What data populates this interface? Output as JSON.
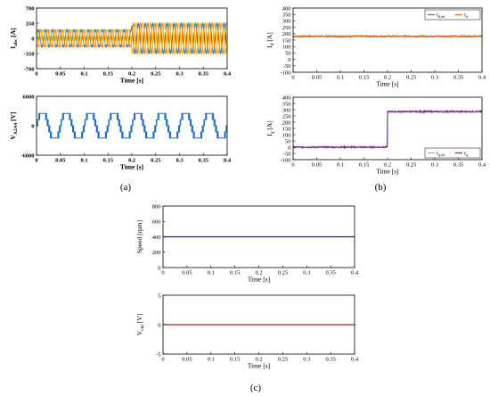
{
  "chart_data": [
    {
      "id": "iabc",
      "type": "line",
      "ylabel": "I",
      "ylabel_sub": "abc",
      "yunit": "[A]",
      "xlabel": "Time [s]",
      "xlim": [
        0,
        0.4
      ],
      "ylim": [
        -700,
        700
      ],
      "xticks": [
        "0",
        "0.05",
        "0.1",
        "0.15",
        "0.2",
        "0.25",
        "0.3",
        "0.35",
        "0.4"
      ],
      "yticks": [
        "700",
        "350",
        "0",
        "-350",
        "-700"
      ],
      "signal": {
        "kind": "three-phase",
        "frequency_hz": 66.7,
        "amplitude_before": 200,
        "amplitude_after": 350,
        "step_time": 0.2
      },
      "series": [
        {
          "name": "",
          "color": "#1f77b4",
          "phase_deg": 0
        },
        {
          "name": "",
          "color": "#ff7f0e",
          "phase_deg": -120
        },
        {
          "name": "",
          "color": "#ffbf00",
          "phase_deg": 120
        }
      ]
    },
    {
      "id": "va2a4",
      "type": "line",
      "ylabel": "V",
      "ylabel_sub": "A2A4",
      "yunit": "[V]",
      "xlabel": "Time [s]",
      "xlim": [
        0,
        0.4
      ],
      "ylim": [
        -6000,
        6000
      ],
      "xticks": [
        "0",
        "0.05",
        "0.1",
        "0.15",
        "0.2",
        "0.25",
        "0.3",
        "0.35",
        "0.4"
      ],
      "yticks": [
        "6000",
        "0",
        "-6000"
      ],
      "signal": {
        "kind": "multilevel-pwm",
        "frequency_hz": 20,
        "levels": [
          -2500,
          -1250,
          0,
          1250,
          2500
        ]
      },
      "series": [
        {
          "name": "",
          "color": "#1f6fc4"
        }
      ]
    },
    {
      "id": "id",
      "type": "line",
      "ylabel": "I",
      "ylabel_sub": "d",
      "yunit": "[A]",
      "xlabel": "Time [s]",
      "xlim": [
        0,
        0.4
      ],
      "ylim": [
        -100,
        400
      ],
      "xticks": [
        "0",
        "0.05",
        "0.1",
        "0.15",
        "0.2",
        "0.25",
        "0.3",
        "0.35",
        "0.4"
      ],
      "yticks": [
        "400",
        "350",
        "300",
        "250",
        "200",
        "150",
        "100",
        "50",
        "0",
        "-50",
        "-100"
      ],
      "legend": "top-right",
      "series": [
        {
          "name": "I",
          "name_sub": "d,ref",
          "color": "#4a6fb5",
          "values": [
            [
              0,
              180
            ],
            [
              0.4,
              180
            ]
          ]
        },
        {
          "name": "I",
          "name_sub": "d",
          "color": "#d2691e",
          "noisy": true,
          "values": [
            [
              0,
              180
            ],
            [
              0.4,
              180
            ]
          ]
        }
      ]
    },
    {
      "id": "iq",
      "type": "line",
      "ylabel": "I",
      "ylabel_sub": "q",
      "yunit": "[A]",
      "xlabel": "Time [s]",
      "xlim": [
        0,
        0.4
      ],
      "ylim": [
        -100,
        400
      ],
      "xticks": [
        "0",
        "0.05",
        "0.1",
        "0.15",
        "0.2",
        "0.25",
        "0.3",
        "0.35",
        "0.4"
      ],
      "yticks": [
        "400",
        "350",
        "300",
        "250",
        "200",
        "150",
        "100",
        "50",
        "0",
        "-50",
        "-100"
      ],
      "legend": "bottom-right",
      "series": [
        {
          "name": "I",
          "name_sub": "q,ref",
          "color": "#8bc34a",
          "values": [
            [
              0,
              0
            ],
            [
              0.2,
              0
            ],
            [
              0.2,
              285
            ],
            [
              0.4,
              285
            ]
          ]
        },
        {
          "name": "I",
          "name_sub": "q",
          "color": "#7b2d8e",
          "noisy": true,
          "values": [
            [
              0,
              0
            ],
            [
              0.2,
              0
            ],
            [
              0.2,
              285
            ],
            [
              0.4,
              285
            ]
          ]
        }
      ]
    },
    {
      "id": "speed",
      "type": "line",
      "ylabel": "Speed [rpm]",
      "xlabel": "Time [s]",
      "xlim": [
        0,
        0.4
      ],
      "ylim": [
        0,
        800
      ],
      "xticks": [
        "0",
        "0.05",
        "0.1",
        "0.15",
        "0.2",
        "0.25",
        "0.3",
        "0.35",
        "0.4"
      ],
      "yticks": [
        "800",
        "600",
        "400",
        "200",
        "0"
      ],
      "series": [
        {
          "name": "",
          "color": "#1a1aa8",
          "values": [
            [
              0,
              400
            ],
            [
              0.4,
              400
            ]
          ]
        }
      ]
    },
    {
      "id": "vcm",
      "type": "line",
      "ylabel": "V",
      "ylabel_sub": "cm",
      "yunit": "[V]",
      "xlabel": "Time [s]",
      "xlim": [
        0,
        0.4
      ],
      "ylim": [
        -5,
        5
      ],
      "xticks": [
        "0",
        "0.05",
        "0.1",
        "0.15",
        "0.2",
        "0.25",
        "0.3",
        "0.35",
        "0.4"
      ],
      "yticks": [
        "5",
        "0",
        "-5"
      ],
      "series": [
        {
          "name": "",
          "color": "#b02020",
          "values": [
            [
              0,
              0
            ],
            [
              0.4,
              0
            ]
          ]
        }
      ]
    }
  ],
  "panel_labels": {
    "a": "(a)",
    "b": "(b)",
    "c": "(c)"
  }
}
